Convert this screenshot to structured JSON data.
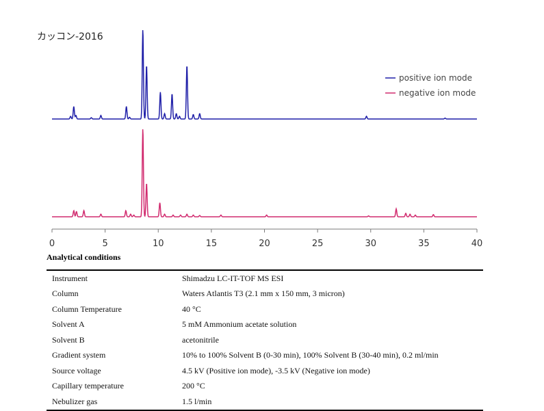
{
  "chart_data": {
    "type": "line",
    "title": "カッコン-2016",
    "xlabel": "",
    "ylabel": "",
    "xlim": [
      0,
      40
    ],
    "x_ticks": [
      0,
      5,
      10,
      15,
      20,
      25,
      30,
      35,
      40
    ],
    "grid": false,
    "legend_position": "top-right",
    "series": [
      {
        "name": "positive ion mode",
        "color": "#1f1fa8",
        "peaks": [
          {
            "rt": 1.75,
            "h": 0.03
          },
          {
            "rt": 2.05,
            "h": 0.14
          },
          {
            "rt": 2.25,
            "h": 0.04
          },
          {
            "rt": 3.7,
            "h": 0.015
          },
          {
            "rt": 4.6,
            "h": 0.04
          },
          {
            "rt": 7.0,
            "h": 0.14
          },
          {
            "rt": 7.3,
            "h": 0.02
          },
          {
            "rt": 8.55,
            "h": 1.0
          },
          {
            "rt": 8.9,
            "h": 0.6
          },
          {
            "rt": 10.2,
            "h": 0.3
          },
          {
            "rt": 10.6,
            "h": 0.06
          },
          {
            "rt": 11.3,
            "h": 0.28
          },
          {
            "rt": 11.7,
            "h": 0.06
          },
          {
            "rt": 12.0,
            "h": 0.03
          },
          {
            "rt": 12.7,
            "h": 0.6
          },
          {
            "rt": 13.3,
            "h": 0.05
          },
          {
            "rt": 13.9,
            "h": 0.06
          },
          {
            "rt": 29.6,
            "h": 0.03
          },
          {
            "rt": 37.0,
            "h": 0.01
          }
        ]
      },
      {
        "name": "negative ion mode",
        "color": "#d12a6e",
        "peaks": [
          {
            "rt": 2.05,
            "h": 0.07
          },
          {
            "rt": 2.3,
            "h": 0.06
          },
          {
            "rt": 3.0,
            "h": 0.07
          },
          {
            "rt": 4.6,
            "h": 0.03
          },
          {
            "rt": 6.95,
            "h": 0.07
          },
          {
            "rt": 7.4,
            "h": 0.03
          },
          {
            "rt": 7.7,
            "h": 0.02
          },
          {
            "rt": 8.55,
            "h": 1.0
          },
          {
            "rt": 8.9,
            "h": 0.38
          },
          {
            "rt": 10.15,
            "h": 0.16
          },
          {
            "rt": 10.6,
            "h": 0.03
          },
          {
            "rt": 11.4,
            "h": 0.02
          },
          {
            "rt": 12.1,
            "h": 0.02
          },
          {
            "rt": 12.7,
            "h": 0.03
          },
          {
            "rt": 13.3,
            "h": 0.02
          },
          {
            "rt": 13.9,
            "h": 0.015
          },
          {
            "rt": 15.9,
            "h": 0.02
          },
          {
            "rt": 20.2,
            "h": 0.02
          },
          {
            "rt": 29.8,
            "h": 0.01
          },
          {
            "rt": 32.4,
            "h": 0.09
          },
          {
            "rt": 33.3,
            "h": 0.04
          },
          {
            "rt": 33.7,
            "h": 0.03
          },
          {
            "rt": 34.2,
            "h": 0.02
          },
          {
            "rt": 35.9,
            "h": 0.025
          }
        ]
      }
    ]
  },
  "conditions": {
    "heading": "Analytical conditions",
    "rows": [
      {
        "label": "Instrument",
        "value": "Shimadzu LC-IT-TOF MS ESI"
      },
      {
        "label": "Column",
        "value": "Waters Atlantis T3 (2.1 mm x 150 mm, 3 micron)"
      },
      {
        "label": "Column Temperature",
        "value": "40 °C"
      },
      {
        "label": "Solvent A",
        "value": "5 mM Ammonium acetate solution"
      },
      {
        "label": "Solvent B",
        "value": "acetonitrile"
      },
      {
        "label": "Gradient system",
        "value": "10% to 100% Solvent B (0-30 min), 100% Solvent B (30-40 min), 0.2 ml/min"
      },
      {
        "label": "Source voltage",
        "value": "4.5 kV (Positive ion mode), -3.5 kV (Negative ion mode)"
      },
      {
        "label": "Capillary temperature",
        "value": "200 °C"
      },
      {
        "label": "Nebulizer gas",
        "value": "1.5 l/min"
      }
    ]
  }
}
